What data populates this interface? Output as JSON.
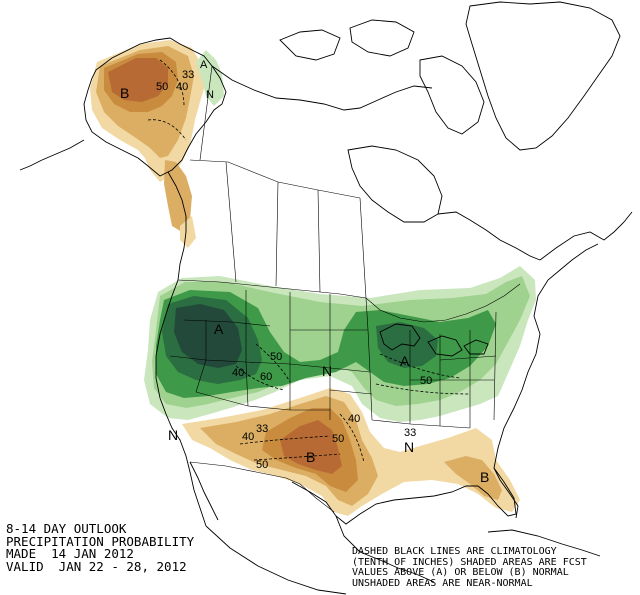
{
  "caption": {
    "line1": "8-14 DAY OUTLOOK",
    "line2": "PRECIPITATION PROBABILITY",
    "line3": "MADE  14 JAN 2012",
    "line4": "VALID  JAN 22 - 28, 2012"
  },
  "note": {
    "line1": "DASHED BLACK LINES ARE CLIMATOLOGY",
    "line2": "(TENTH OF INCHES) SHADED AREAS ARE FCST",
    "line3": "VALUES ABOVE (A) OR BELOW (B) NORMAL",
    "line4": "UNSHADED AREAS ARE NEAR-NORMAL"
  },
  "colors": {
    "above_33": "#c9e6bd",
    "above_40": "#9fd18f",
    "above_50": "#3e9a48",
    "above_60": "#2b6e41",
    "above_70": "#22493a",
    "below_33": "#f2d9a4",
    "below_40": "#dcae63",
    "below_50": "#c98c3e",
    "below_60": "#b86a35"
  },
  "labels": {
    "alaska_b": "B",
    "alaska_a": "A",
    "alaska_n": "N",
    "alaska_33": "33",
    "alaska_40": "40",
    "alaska_50": "50",
    "west_a": "A",
    "west_50": "50",
    "west_60": "60",
    "west_40": "40",
    "east_a": "A",
    "east_50": "50",
    "sw_b": "B",
    "sw_n": "N",
    "sw_n2": "N",
    "sw_40": "40",
    "sw_50": "50",
    "sw_33": "33",
    "sw_50b": "50",
    "sw_40b": "40",
    "se_b": "B",
    "se_33": "33",
    "se_n": "N"
  }
}
